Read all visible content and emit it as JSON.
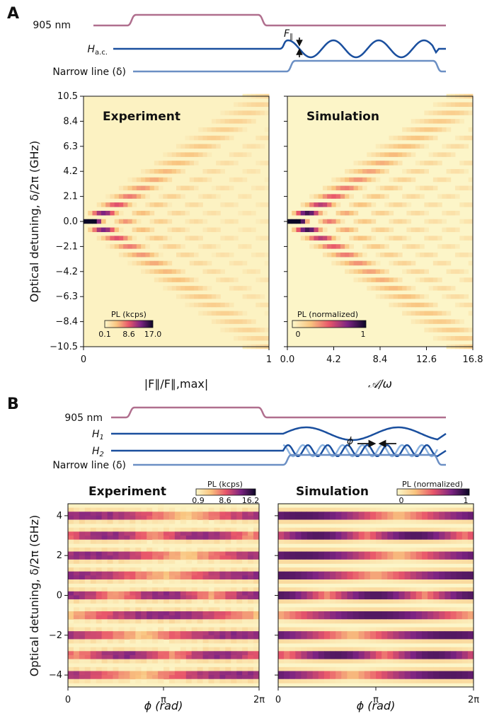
{
  "panels": {
    "A": {
      "letter": "A",
      "pulse_labels": {
        "laser": "905 nm",
        "drive": "H",
        "drive_sub": "a.c.",
        "narrow": "Narrow line (δ)",
        "force": "F",
        "force_sub": "∥"
      },
      "colors": {
        "laser": "#b06f8e",
        "drive": "#1a4f9e",
        "narrow": "#6b8fc4"
      }
    },
    "B": {
      "letter": "B",
      "pulse_labels": {
        "laser": "905 nm",
        "drive1": "H",
        "drive1_sub": "1",
        "drive2": "H",
        "drive2_sub": "2",
        "narrow": "Narrow line (δ)",
        "phase": "ϕ"
      },
      "colors": {
        "laser": "#b06f8e",
        "drive1": "#1a4f9e",
        "drive2_dark": "#1a4f9e",
        "drive2_light": "#8cb3e0",
        "narrow": "#6b8fc4"
      }
    }
  },
  "chart_data": [
    {
      "id": "A-experiment",
      "type": "heatmap",
      "title": "Experiment",
      "xlabel": "|F∥/F∥,max|",
      "ylabel": "Optical detuning, δ/2π (GHz)",
      "xticks": [
        "0",
        "1"
      ],
      "yticks": [
        "10.5",
        "8.4",
        "6.3",
        "4.2",
        "2.1",
        "0.0",
        "-2.1",
        "-4.2",
        "-6.3",
        "-8.4",
        "−10.5"
      ],
      "xlim": [
        0,
        1
      ],
      "ylim": [
        -10.5,
        10.5
      ],
      "colorbar": {
        "label": "PL (kcps)",
        "ticks": [
          "0.1",
          "8.6",
          "17.0"
        ],
        "range": [
          0.1,
          17.0
        ]
      },
      "drive_frequency_ghz": 0.7,
      "max_sideband_order": 15
    },
    {
      "id": "A-simulation",
      "type": "heatmap",
      "title": "Simulation",
      "xlabel": "𝒜/ω",
      "xticks": [
        "0.0",
        "4.2",
        "8.4",
        "12.6",
        "16.8"
      ],
      "xlim": [
        0,
        16.8
      ],
      "ylim": [
        -10.5,
        10.5
      ],
      "colorbar": {
        "label": "PL (normalized)",
        "ticks": [
          "0",
          "1"
        ],
        "range": [
          0,
          1
        ]
      }
    },
    {
      "id": "B-experiment",
      "type": "heatmap",
      "title": "Experiment",
      "xlabel": "ϕ (rad)",
      "ylabel": "Optical detuning, δ/2π (GHz)",
      "xticks": [
        "0",
        "π",
        "2π"
      ],
      "yticks": [
        "4",
        "2",
        "0",
        "−2",
        "−4"
      ],
      "xlim": [
        0,
        6.2832
      ],
      "ylim": [
        -4.6,
        4.6
      ],
      "colorbar": {
        "label": "PL (kcps)",
        "ticks": [
          "0.9",
          "8.6",
          "16.2"
        ],
        "range": [
          0.9,
          16.2
        ]
      },
      "sideband_spacing_ghz": 1.0
    },
    {
      "id": "B-simulation",
      "type": "heatmap",
      "title": "Simulation",
      "xlabel": "ϕ (rad)",
      "xticks": [
        "0",
        "π",
        "2π"
      ],
      "xlim": [
        0,
        6.2832
      ],
      "ylim": [
        -4.6,
        4.6
      ],
      "colorbar": {
        "label": "PL (normalized)",
        "ticks": [
          "0",
          "1"
        ],
        "range": [
          0,
          1
        ]
      }
    }
  ]
}
